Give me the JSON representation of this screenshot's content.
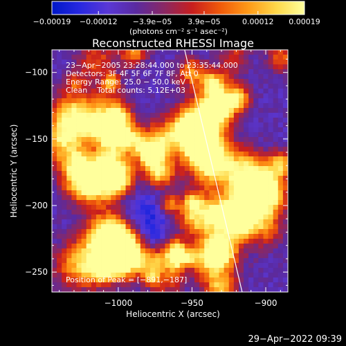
{
  "chart_data": {
    "type": "heatmap",
    "title": "Reconstructed RHESSI Image",
    "xlabel": "Heliocentric X (arcsec)",
    "ylabel": "Heliocentric Y (arcsec)",
    "xlim": [
      -1045,
      -885
    ],
    "ylim": [
      -265,
      -83
    ],
    "xticks": [
      -1000,
      -950,
      -900
    ],
    "xtick_labels": [
      "−1000",
      "−950",
      "−900"
    ],
    "yticks": [
      -100,
      -150,
      -200,
      -250
    ],
    "ytick_labels": [
      "−100",
      "−150",
      "−200",
      "−250"
    ],
    "grid": false,
    "limb_line": {
      "x": [
        -955,
        -916
      ],
      "y": [
        -83,
        -265
      ]
    },
    "colorbar": {
      "range": [
        -0.00019,
        0.00019
      ],
      "tick_values": [
        -0.00019,
        -0.00012,
        -3.9e-05,
        3.9e-05,
        0.00012,
        0.00019
      ],
      "tick_labels": [
        "−0.00019",
        "−0.00012",
        "−3.9e−05",
        "3.9e−05",
        "0.00012",
        "0.00019"
      ],
      "unit_label": "(photons cm⁻² s⁻¹ asec⁻²)",
      "colors": [
        "#0018c8",
        "#2828e0",
        "#5a38d6",
        "#5a2aa0",
        "#8a2864",
        "#c81e1e",
        "#f05a0a",
        "#ff9a18",
        "#ffd84a",
        "#ffff9c"
      ]
    },
    "info_lines": [
      "23−Apr−2005 23:28:44.000 to 23:35:44.000",
      "Detectors: 3F 4F 5F 6F 7F 8F, Att 0",
      "Energy Range: 25.0 − 50.0 keV",
      "Clean    Total counts: 5.12E+03"
    ],
    "peak_label": "Position of Peak = [−891,−187]",
    "peak": [
      -891,
      -187
    ]
  },
  "footer": {
    "timestamp": "29−Apr−2022 09:39"
  }
}
